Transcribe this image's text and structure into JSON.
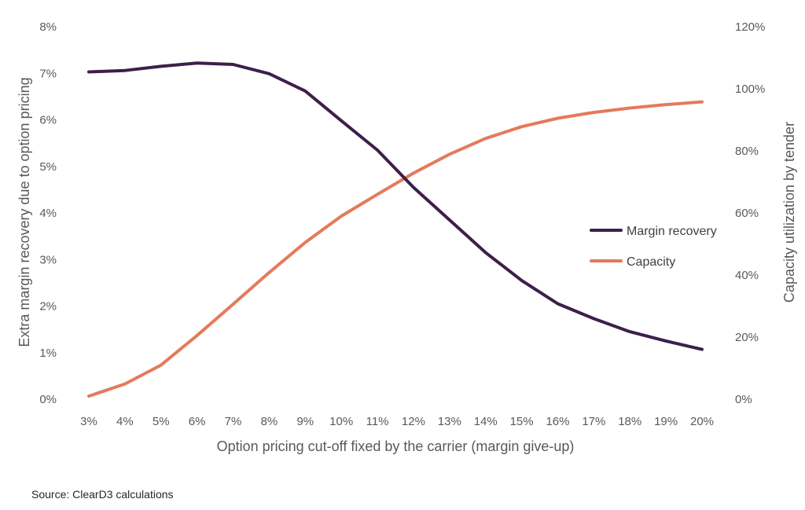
{
  "chart_data": {
    "type": "line",
    "title": "",
    "xlabel": "Option pricing cut-off fixed by the carrier (margin give-up)",
    "ylabel_left": "Extra margin recovery due to option pricing",
    "ylabel_right": "Capacity utilization by tender",
    "categories": [
      "3%",
      "4%",
      "5%",
      "6%",
      "7%",
      "8%",
      "9%",
      "10%",
      "11%",
      "12%",
      "13%",
      "14%",
      "15%",
      "16%",
      "17%",
      "18%",
      "19%",
      "20%"
    ],
    "y_left": {
      "ticks": [
        "0%",
        "1%",
        "2%",
        "3%",
        "4%",
        "5%",
        "6%",
        "7%",
        "8%"
      ],
      "range": [
        0,
        8
      ]
    },
    "y_right": {
      "ticks": [
        "0%",
        "20%",
        "40%",
        "60%",
        "80%",
        "100%",
        "120%"
      ],
      "range": [
        0,
        120
      ]
    },
    "series": [
      {
        "name": "Margin recovery",
        "axis": "left",
        "color": "#3d1f4a",
        "values": [
          7.03,
          7.06,
          7.15,
          7.22,
          7.19,
          6.99,
          6.62,
          5.98,
          5.35,
          4.55,
          3.85,
          3.15,
          2.55,
          2.05,
          1.73,
          1.45,
          1.25,
          1.07
        ]
      },
      {
        "name": "Capacity",
        "axis": "right",
        "color": "#e47a5c",
        "values": [
          1.0,
          4.9,
          11.0,
          20.5,
          30.6,
          40.8,
          50.5,
          59.0,
          66.0,
          72.8,
          78.9,
          84.0,
          87.8,
          90.5,
          92.4,
          93.8,
          94.9,
          95.8
        ]
      }
    ],
    "legend": "right",
    "grid": false
  },
  "footer": {
    "source": "Source: ClearD3 calculations"
  }
}
